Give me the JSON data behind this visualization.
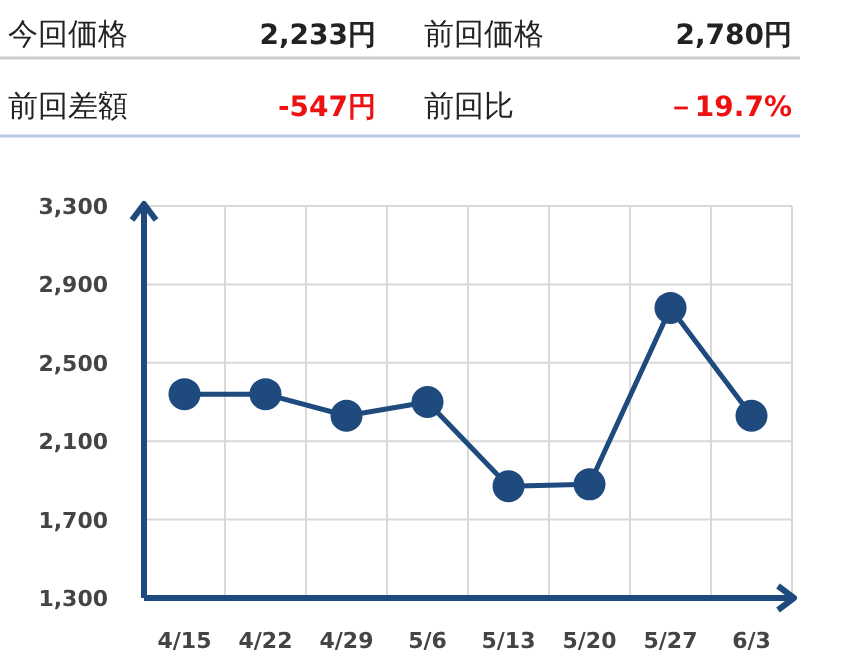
{
  "chart_data": {
    "type": "line",
    "annotations": [
      "今回価格",
      "2,233円",
      "前回価格",
      "2,780円",
      "前回差額",
      "-547円",
      "前回比",
      "－19.7%"
    ],
    "categories": [
      "4/15",
      "4/22",
      "4/29",
      "5/6",
      "5/13",
      "5/20",
      "5/27",
      "6/3"
    ],
    "series": [
      {
        "color": "#1f4a7e",
        "values": [
          2340,
          2340,
          2230,
          2300,
          1870,
          1880,
          2780,
          2230
        ]
      }
    ],
    "ylim": [
      1300,
      3300
    ],
    "yticks": [
      {
        "value": 1300,
        "label": "1,300"
      },
      {
        "value": 1700,
        "label": "1,700"
      },
      {
        "value": 2100,
        "label": "2,100"
      },
      {
        "value": 2500,
        "label": "2,500"
      },
      {
        "value": 2900,
        "label": "2,900"
      },
      {
        "value": 3300,
        "label": "3,300"
      }
    ],
    "grid": true,
    "marker": "circle",
    "line_style": "solid"
  }
}
